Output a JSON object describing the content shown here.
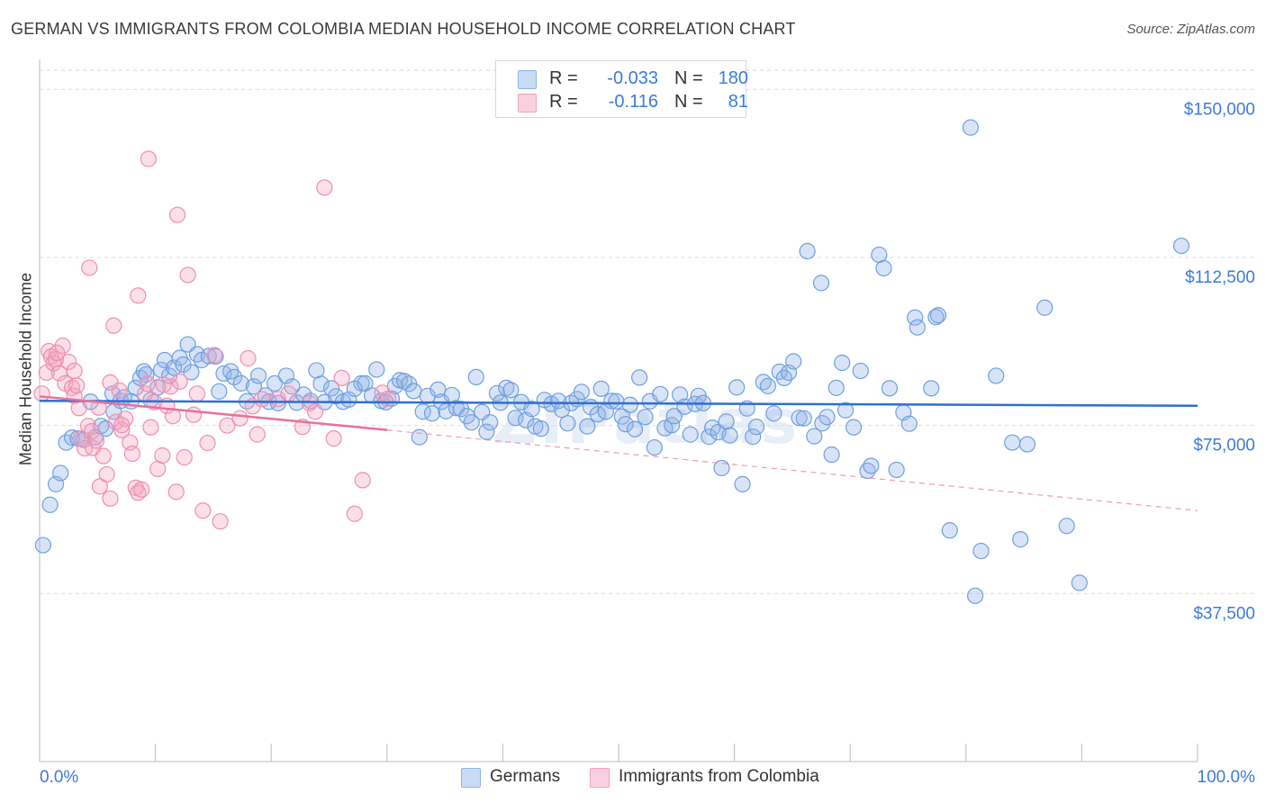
{
  "title": "GERMAN VS IMMIGRANTS FROM COLOMBIA MEDIAN HOUSEHOLD INCOME CORRELATION CHART",
  "source": "Source: ZipAtlas.com",
  "watermark": "ZIPatlas",
  "legend": {
    "r_label": "R =",
    "n_label": "N =",
    "rows": [
      {
        "r": "-0.033",
        "n": "180",
        "color": "#8fb3e6",
        "fill": "#c9dcf5"
      },
      {
        "r": "-0.116",
        "n": "81",
        "color": "#f2a2bd",
        "fill": "#f9d0df"
      }
    ]
  },
  "bottom_legend": [
    "Germans",
    "Immigrants from Colombia"
  ],
  "chart_data": {
    "type": "scatter",
    "ylabel": "Median Household Income",
    "xlim": [
      0,
      100
    ],
    "ylim": [
      0,
      157500
    ],
    "x_tick_labels": [
      "0.0%",
      "100.0%"
    ],
    "y_ticks": [
      {
        "value": 150000,
        "label": "$150,000"
      },
      {
        "value": 112500,
        "label": "$112,500"
      },
      {
        "value": 75000,
        "label": "$75,000"
      },
      {
        "value": 37500,
        "label": "$37,500"
      }
    ],
    "grid": "horizontal dashed",
    "series": [
      {
        "name": "Germans",
        "color": "#6f9fe0",
        "fill": "rgba(143,179,230,0.35)",
        "trend": {
          "x": [
            0,
            100
          ],
          "y": [
            80500,
            79400
          ],
          "color": "#2f6fd1",
          "dashed_from": null
        },
        "points": [
          [
            0.3,
            48300
          ],
          [
            0.9,
            57300
          ],
          [
            1.4,
            61900
          ],
          [
            1.8,
            64400
          ],
          [
            2.3,
            71200
          ],
          [
            2.8,
            72300
          ],
          [
            3.3,
            72100
          ],
          [
            3.8,
            71800
          ],
          [
            4.4,
            80300
          ],
          [
            4.8,
            72400
          ],
          [
            5.3,
            74900
          ],
          [
            5.7,
            74300
          ],
          [
            6.3,
            82100
          ],
          [
            6.4,
            78100
          ],
          [
            7.0,
            80500
          ],
          [
            7.3,
            81300
          ],
          [
            7.9,
            80400
          ],
          [
            8.3,
            83400
          ],
          [
            8.7,
            85600
          ],
          [
            9.0,
            87100
          ],
          [
            9.2,
            86400
          ],
          [
            9.6,
            80700
          ],
          [
            10.2,
            83500
          ],
          [
            10.5,
            87400
          ],
          [
            10.8,
            89600
          ],
          [
            11.2,
            86100
          ],
          [
            11.6,
            87900
          ],
          [
            12.1,
            90100
          ],
          [
            12.4,
            88600
          ],
          [
            12.8,
            93100
          ],
          [
            13.1,
            86900
          ],
          [
            13.6,
            90900
          ],
          [
            14.0,
            89600
          ],
          [
            14.6,
            90500
          ],
          [
            15.2,
            90400
          ],
          [
            15.5,
            82600
          ],
          [
            15.9,
            86600
          ],
          [
            16.5,
            87100
          ],
          [
            16.8,
            85800
          ],
          [
            17.4,
            84400
          ],
          [
            17.9,
            80400
          ],
          [
            18.5,
            83700
          ],
          [
            18.9,
            86100
          ],
          [
            19.5,
            81700
          ],
          [
            19.8,
            80300
          ],
          [
            20.3,
            84400
          ],
          [
            20.6,
            80000
          ],
          [
            21.3,
            86100
          ],
          [
            21.8,
            83700
          ],
          [
            22.2,
            80100
          ],
          [
            22.8,
            81900
          ],
          [
            23.4,
            80500
          ],
          [
            23.9,
            87300
          ],
          [
            24.3,
            84300
          ],
          [
            24.6,
            80200
          ],
          [
            25.2,
            83300
          ],
          [
            25.6,
            81500
          ],
          [
            26.2,
            80300
          ],
          [
            26.7,
            80800
          ],
          [
            27.2,
            83200
          ],
          [
            27.8,
            84400
          ],
          [
            28.1,
            84400
          ],
          [
            28.7,
            81700
          ],
          [
            29.1,
            87500
          ],
          [
            29.5,
            80500
          ],
          [
            29.9,
            80200
          ],
          [
            30.4,
            81000
          ],
          [
            30.7,
            83800
          ],
          [
            31.1,
            85100
          ],
          [
            31.5,
            84900
          ],
          [
            31.9,
            84300
          ],
          [
            32.3,
            82700
          ],
          [
            32.8,
            72400
          ],
          [
            33.1,
            78100
          ],
          [
            33.5,
            81600
          ],
          [
            33.9,
            77700
          ],
          [
            34.4,
            83000
          ],
          [
            34.7,
            80300
          ],
          [
            35.1,
            78200
          ],
          [
            35.6,
            81800
          ],
          [
            36.0,
            78900
          ],
          [
            36.4,
            78700
          ],
          [
            36.9,
            77100
          ],
          [
            37.3,
            75700
          ],
          [
            37.7,
            85800
          ],
          [
            38.2,
            78000
          ],
          [
            38.6,
            73600
          ],
          [
            38.9,
            75700
          ],
          [
            39.5,
            82200
          ],
          [
            39.8,
            80100
          ],
          [
            40.3,
            83400
          ],
          [
            40.7,
            82900
          ],
          [
            41.1,
            76700
          ],
          [
            41.6,
            80200
          ],
          [
            42.0,
            76200
          ],
          [
            42.5,
            78700
          ],
          [
            42.8,
            74800
          ],
          [
            43.3,
            74300
          ],
          [
            43.6,
            80700
          ],
          [
            44.2,
            79800
          ],
          [
            44.8,
            80500
          ],
          [
            45.1,
            78500
          ],
          [
            45.6,
            75500
          ],
          [
            45.9,
            80000
          ],
          [
            46.4,
            80900
          ],
          [
            46.8,
            82500
          ],
          [
            47.3,
            74800
          ],
          [
            47.6,
            79100
          ],
          [
            48.2,
            77500
          ],
          [
            48.5,
            83200
          ],
          [
            48.9,
            78100
          ],
          [
            49.4,
            80500
          ],
          [
            49.8,
            80400
          ],
          [
            50.3,
            77000
          ],
          [
            50.6,
            75300
          ],
          [
            51.0,
            79600
          ],
          [
            51.4,
            74200
          ],
          [
            51.8,
            85700
          ],
          [
            52.3,
            76900
          ],
          [
            52.7,
            80400
          ],
          [
            53.1,
            70100
          ],
          [
            53.6,
            82000
          ],
          [
            54.0,
            74400
          ],
          [
            54.6,
            75100
          ],
          [
            54.8,
            77100
          ],
          [
            55.3,
            81900
          ],
          [
            55.7,
            79200
          ],
          [
            56.2,
            73000
          ],
          [
            56.6,
            79800
          ],
          [
            56.9,
            81600
          ],
          [
            57.3,
            80000
          ],
          [
            57.8,
            72500
          ],
          [
            58.1,
            74500
          ],
          [
            58.6,
            73500
          ],
          [
            58.9,
            65500
          ],
          [
            59.3,
            75900
          ],
          [
            59.6,
            72800
          ],
          [
            60.2,
            83500
          ],
          [
            60.7,
            61900
          ],
          [
            61.1,
            78800
          ],
          [
            61.6,
            72500
          ],
          [
            61.9,
            74700
          ],
          [
            62.5,
            84700
          ],
          [
            62.9,
            83800
          ],
          [
            63.4,
            77700
          ],
          [
            63.9,
            87000
          ],
          [
            64.3,
            85600
          ],
          [
            64.7,
            86800
          ],
          [
            65.1,
            89300
          ],
          [
            65.6,
            76700
          ],
          [
            66.0,
            76600
          ],
          [
            66.3,
            113900
          ],
          [
            66.9,
            72600
          ],
          [
            67.5,
            106800
          ],
          [
            67.6,
            75500
          ],
          [
            68.0,
            76900
          ],
          [
            68.4,
            68500
          ],
          [
            68.8,
            83400
          ],
          [
            69.3,
            89000
          ],
          [
            69.6,
            78400
          ],
          [
            70.3,
            74600
          ],
          [
            70.9,
            87200
          ],
          [
            71.5,
            64900
          ],
          [
            71.8,
            66000
          ],
          [
            72.5,
            113100
          ],
          [
            72.9,
            110100
          ],
          [
            73.4,
            83300
          ],
          [
            74.0,
            65100
          ],
          [
            74.6,
            77900
          ],
          [
            75.1,
            75400
          ],
          [
            75.6,
            99100
          ],
          [
            75.8,
            96900
          ],
          [
            77.0,
            83300
          ],
          [
            77.4,
            99200
          ],
          [
            77.6,
            99600
          ],
          [
            78.6,
            51600
          ],
          [
            80.8,
            37000
          ],
          [
            81.3,
            47000
          ],
          [
            82.6,
            86100
          ],
          [
            84.0,
            71200
          ],
          [
            84.7,
            49600
          ],
          [
            85.3,
            70800
          ],
          [
            86.8,
            101300
          ],
          [
            88.7,
            52600
          ],
          [
            89.8,
            39900
          ],
          [
            80.4,
            141500
          ],
          [
            98.6,
            115100
          ]
        ]
      },
      {
        "name": "Immigrants from Colombia",
        "color": "#ee8fb0",
        "fill": "rgba(244,164,192,0.35)",
        "trend": {
          "x": [
            0,
            30,
            100
          ],
          "y": [
            81500,
            74000,
            56000
          ],
          "color": "#e8709a",
          "dashed_from": 30
        },
        "points": [
          [
            0.2,
            82100
          ],
          [
            0.6,
            86800
          ],
          [
            0.8,
            91600
          ],
          [
            1.0,
            90400
          ],
          [
            1.2,
            88900
          ],
          [
            1.4,
            89800
          ],
          [
            1.7,
            86700
          ],
          [
            2.0,
            92800
          ],
          [
            2.2,
            84400
          ],
          [
            2.5,
            89200
          ],
          [
            2.8,
            83400
          ],
          [
            3.0,
            81600
          ],
          [
            3.2,
            83900
          ],
          [
            3.4,
            78900
          ],
          [
            3.6,
            72100
          ],
          [
            3.9,
            69900
          ],
          [
            4.2,
            74900
          ],
          [
            4.5,
            73700
          ],
          [
            4.6,
            70000
          ],
          [
            4.9,
            71600
          ],
          [
            5.2,
            61400
          ],
          [
            5.5,
            68200
          ],
          [
            5.8,
            64100
          ],
          [
            6.1,
            58700
          ],
          [
            6.4,
            97300
          ],
          [
            6.6,
            75800
          ],
          [
            6.9,
            82800
          ],
          [
            7.1,
            74000
          ],
          [
            7.4,
            76500
          ],
          [
            7.8,
            71200
          ],
          [
            8.0,
            68700
          ],
          [
            8.3,
            61100
          ],
          [
            8.5,
            60000
          ],
          [
            8.8,
            60700
          ],
          [
            9.1,
            82100
          ],
          [
            9.3,
            84300
          ],
          [
            9.6,
            74600
          ],
          [
            9.9,
            80200
          ],
          [
            10.2,
            65300
          ],
          [
            10.6,
            68300
          ],
          [
            11.0,
            79400
          ],
          [
            11.3,
            83700
          ],
          [
            11.5,
            77100
          ],
          [
            11.8,
            60200
          ],
          [
            12.1,
            84800
          ],
          [
            12.5,
            67900
          ],
          [
            12.8,
            108600
          ],
          [
            13.3,
            77400
          ],
          [
            13.6,
            82100
          ],
          [
            14.1,
            56000
          ],
          [
            14.5,
            71100
          ],
          [
            15.1,
            90700
          ],
          [
            15.6,
            53600
          ],
          [
            16.2,
            75000
          ],
          [
            17.3,
            76600
          ],
          [
            18.0,
            90000
          ],
          [
            18.4,
            79300
          ],
          [
            18.8,
            73000
          ],
          [
            19.2,
            80900
          ],
          [
            20.6,
            80900
          ],
          [
            21.5,
            82100
          ],
          [
            22.7,
            74700
          ],
          [
            23.3,
            80000
          ],
          [
            23.8,
            78100
          ],
          [
            24.6,
            128100
          ],
          [
            25.4,
            72100
          ],
          [
            26.1,
            85600
          ],
          [
            27.2,
            55300
          ],
          [
            27.9,
            62800
          ],
          [
            29.6,
            82300
          ],
          [
            30.1,
            81000
          ],
          [
            4.3,
            110200
          ],
          [
            8.5,
            104000
          ],
          [
            7.1,
            75100
          ],
          [
            6.1,
            84600
          ],
          [
            11.9,
            122000
          ],
          [
            9.4,
            134500
          ],
          [
            5.1,
            79000
          ],
          [
            10.7,
            84100
          ],
          [
            3.0,
            87200
          ],
          [
            1.5,
            91200
          ]
        ]
      }
    ]
  }
}
